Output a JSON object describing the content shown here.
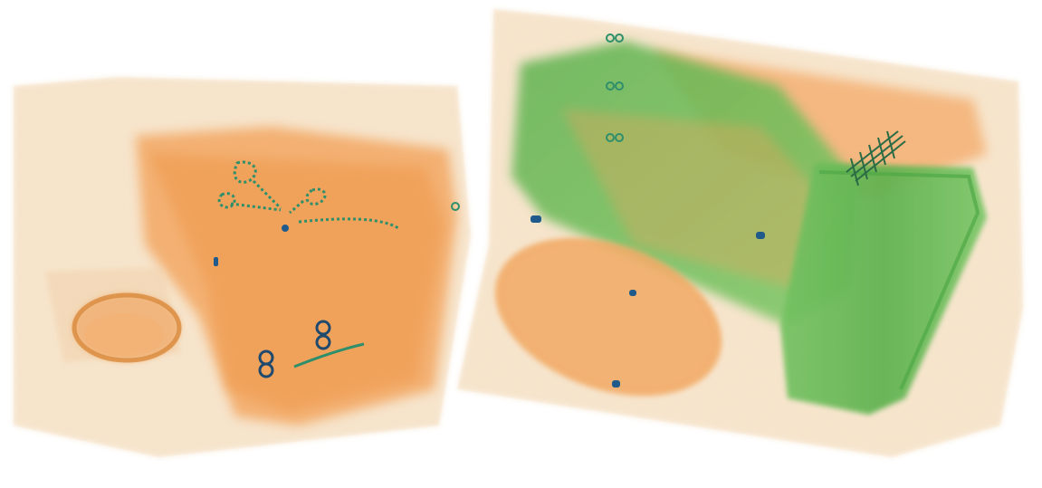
{
  "image": {
    "kind": "x-ray-baggage-scan",
    "objects": [
      {
        "name": "left-box",
        "material": "organic"
      },
      {
        "name": "right-box",
        "material": "organic"
      },
      {
        "name": "scissors-icon",
        "material": "metal"
      },
      {
        "name": "cup",
        "material": "organic"
      },
      {
        "name": "green-bag-large",
        "material": "inorganic"
      },
      {
        "name": "green-cylinder",
        "material": "inorganic"
      },
      {
        "name": "oval-pad",
        "material": "organic"
      },
      {
        "name": "brush-icon",
        "material": "metal"
      }
    ],
    "colors": {
      "background": "#ffffff",
      "box_shell": "#f4d9b8",
      "organic": "#f0a35a",
      "organic_dark": "#e8893a",
      "inorganic": "#6cbf5a",
      "inorganic_dark": "#4ea846",
      "metal": "#1f5a8a",
      "wire": "#2e8f6a"
    }
  }
}
